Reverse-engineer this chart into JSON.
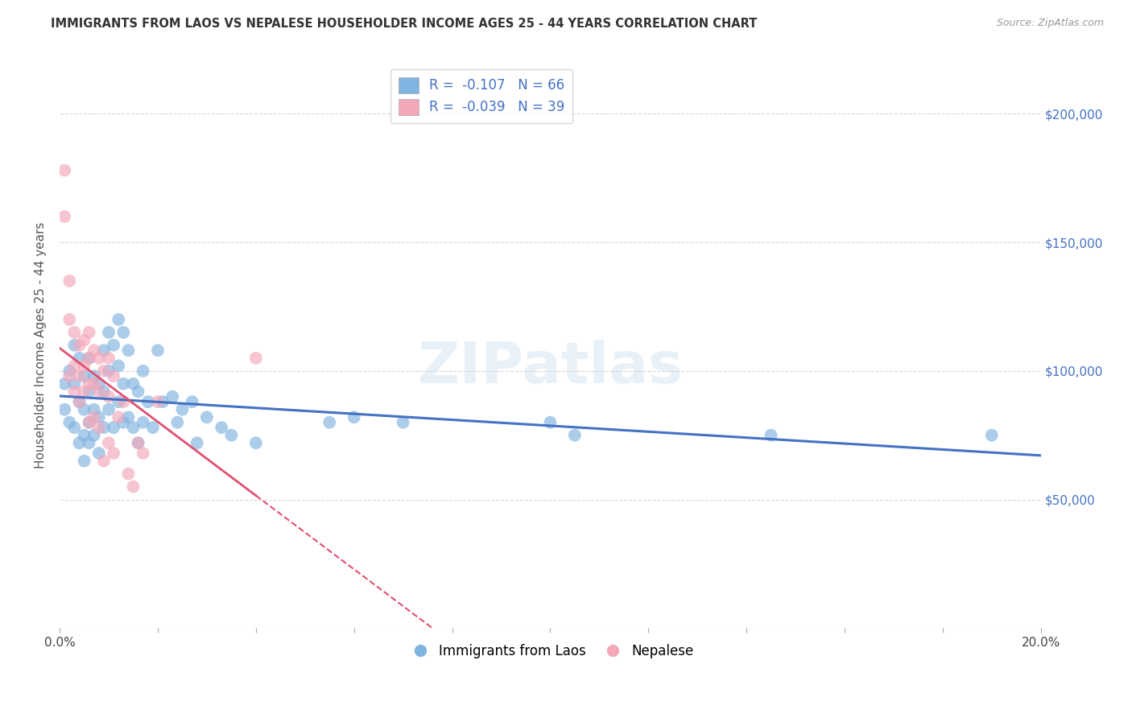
{
  "title": "IMMIGRANTS FROM LAOS VS NEPALESE HOUSEHOLDER INCOME AGES 25 - 44 YEARS CORRELATION CHART",
  "source": "Source: ZipAtlas.com",
  "ylabel": "Householder Income Ages 25 - 44 years",
  "xlim": [
    0.0,
    0.2
  ],
  "ylim": [
    0,
    220000
  ],
  "xticks": [
    0.0,
    0.02,
    0.04,
    0.06,
    0.08,
    0.1,
    0.12,
    0.14,
    0.16,
    0.18,
    0.2
  ],
  "xticklabels": [
    "0.0%",
    "",
    "",
    "",
    "",
    "",
    "",
    "",
    "",
    "",
    "20.0%"
  ],
  "yticks": [
    0,
    50000,
    100000,
    150000,
    200000
  ],
  "yticklabels": [
    "",
    "$50,000",
    "$100,000",
    "$150,000",
    "$200,000"
  ],
  "background_color": "#ffffff",
  "grid_color": "#cccccc",
  "title_color": "#333333",
  "source_color": "#999999",
  "ylabel_color": "#555555",
  "laos_color": "#7fb3e0",
  "laos_edge_color": "#7fb3e0",
  "nepal_color": "#f4a7b9",
  "nepal_edge_color": "#f4a7b9",
  "laos_line_color": "#4472c4",
  "nepal_line_color": "#e05070",
  "laos_R": -0.107,
  "laos_N": 66,
  "nepal_R": -0.039,
  "nepal_N": 39,
  "laos_x": [
    0.001,
    0.001,
    0.002,
    0.002,
    0.003,
    0.003,
    0.003,
    0.004,
    0.004,
    0.004,
    0.005,
    0.005,
    0.005,
    0.005,
    0.006,
    0.006,
    0.006,
    0.006,
    0.007,
    0.007,
    0.007,
    0.008,
    0.008,
    0.008,
    0.009,
    0.009,
    0.009,
    0.01,
    0.01,
    0.01,
    0.011,
    0.011,
    0.012,
    0.012,
    0.012,
    0.013,
    0.013,
    0.013,
    0.014,
    0.014,
    0.015,
    0.015,
    0.016,
    0.016,
    0.017,
    0.017,
    0.018,
    0.019,
    0.02,
    0.021,
    0.023,
    0.024,
    0.025,
    0.027,
    0.028,
    0.03,
    0.033,
    0.035,
    0.04,
    0.055,
    0.06,
    0.07,
    0.1,
    0.105,
    0.145,
    0.19
  ],
  "laos_y": [
    95000,
    85000,
    100000,
    80000,
    110000,
    95000,
    78000,
    105000,
    88000,
    72000,
    98000,
    85000,
    75000,
    65000,
    105000,
    92000,
    80000,
    72000,
    98000,
    85000,
    75000,
    95000,
    82000,
    68000,
    108000,
    92000,
    78000,
    115000,
    100000,
    85000,
    110000,
    78000,
    120000,
    102000,
    88000,
    115000,
    95000,
    80000,
    108000,
    82000,
    95000,
    78000,
    92000,
    72000,
    100000,
    80000,
    88000,
    78000,
    108000,
    88000,
    90000,
    80000,
    85000,
    88000,
    72000,
    82000,
    78000,
    75000,
    72000,
    80000,
    82000,
    80000,
    80000,
    75000,
    75000,
    75000
  ],
  "nepal_x": [
    0.001,
    0.001,
    0.002,
    0.002,
    0.002,
    0.003,
    0.003,
    0.003,
    0.004,
    0.004,
    0.004,
    0.005,
    0.005,
    0.005,
    0.006,
    0.006,
    0.006,
    0.006,
    0.007,
    0.007,
    0.007,
    0.008,
    0.008,
    0.008,
    0.009,
    0.009,
    0.01,
    0.01,
    0.01,
    0.011,
    0.011,
    0.012,
    0.013,
    0.014,
    0.015,
    0.016,
    0.017,
    0.02,
    0.04
  ],
  "nepal_y": [
    178000,
    160000,
    135000,
    120000,
    98000,
    115000,
    102000,
    92000,
    110000,
    98000,
    88000,
    112000,
    102000,
    92000,
    115000,
    105000,
    95000,
    80000,
    108000,
    95000,
    82000,
    105000,
    92000,
    78000,
    100000,
    65000,
    105000,
    90000,
    72000,
    98000,
    68000,
    82000,
    88000,
    60000,
    55000,
    72000,
    68000,
    88000,
    105000
  ]
}
